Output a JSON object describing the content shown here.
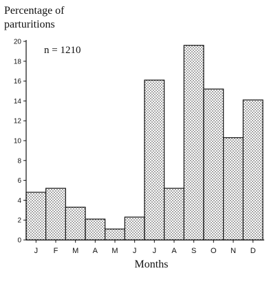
{
  "chart_data": {
    "type": "bar",
    "ylabel_lines": [
      "Percentage of",
      "parturitions"
    ],
    "xlabel": "Months",
    "annotation": "n = 1210",
    "categories": [
      "J",
      "F",
      "M",
      "A",
      "M",
      "J",
      "J",
      "A",
      "S",
      "O",
      "N",
      "D"
    ],
    "values": [
      4.8,
      5.2,
      3.3,
      2.1,
      1.1,
      2.3,
      16.1,
      5.2,
      19.6,
      15.2,
      10.3,
      14.1
    ],
    "ylim": [
      0,
      20
    ],
    "yticks": [
      0,
      2,
      4,
      6,
      8,
      10,
      12,
      14,
      16,
      18,
      20
    ],
    "grid": false,
    "bar_fill": "stippled",
    "colors": {
      "axis": "#111111",
      "bar_edge": "#111111",
      "stipple": "#222222"
    }
  }
}
